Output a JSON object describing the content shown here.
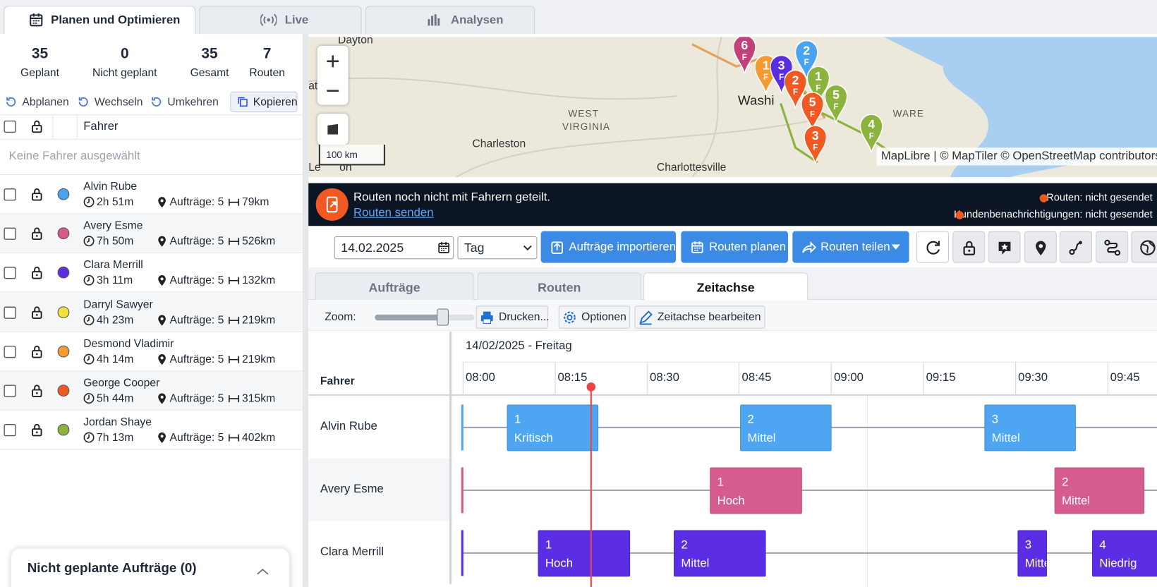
{
  "tabs": [
    "Planen und Optimieren",
    "Live",
    "Analysen"
  ],
  "stats": [
    {
      "value": 35,
      "label": "Geplant"
    },
    {
      "value": 0,
      "label": "Nicht geplant"
    },
    {
      "value": 35,
      "label": "Gesamt"
    },
    {
      "value": 7,
      "label": "Routen"
    }
  ],
  "actions": [
    "Abplanen",
    "Wechseln",
    "Umkehren",
    "Kopieren"
  ],
  "driver_header": "Fahrer",
  "no_selection": "Keine Fahrer ausgewählt",
  "drivers": [
    {
      "name": "Alvin Rube",
      "color": "#4aa3f2",
      "duration": "2h 51m",
      "orders": "Aufträge: 5",
      "distance": "79km"
    },
    {
      "name": "Avery Esme",
      "color": "#d45a8c",
      "duration": "7h 50m",
      "orders": "Aufträge: 5",
      "distance": "526km"
    },
    {
      "name": "Clara Merrill",
      "color": "#5a2de0",
      "duration": "3h 11m",
      "orders": "Aufträge: 5",
      "distance": "132km"
    },
    {
      "name": "Darryl Sawyer",
      "color": "#f2e13a",
      "duration": "4h 23m",
      "orders": "Aufträge: 5",
      "distance": "219km"
    },
    {
      "name": "Desmond Vladimir",
      "color": "#f39a33",
      "duration": "4h 14m",
      "orders": "Aufträge: 5",
      "distance": "219km"
    },
    {
      "name": "George Cooper",
      "color": "#f05a22",
      "duration": "5h 44m",
      "orders": "Aufträge: 5",
      "distance": "315km"
    },
    {
      "name": "Jordan Shaye",
      "color": "#8cb33c",
      "duration": "7h 13m",
      "orders": "Aufträge: 5",
      "distance": "402km"
    }
  ],
  "unplanned_panel": "Nicht geplante Aufträge (0)",
  "map": {
    "labels": [
      "Dayton",
      "ati",
      "WEST",
      "VIRGINIA",
      "Charleston",
      "Washi",
      "Charlottesville",
      "WARE",
      "Le",
      "on"
    ],
    "scale": "100 km",
    "attribution": "MapLibre | © MapTiler © OpenStreetMap contributors",
    "pins": [
      {
        "number": "6",
        "letter": "F",
        "color": "#c2417a"
      },
      {
        "number": "1",
        "letter": "F",
        "color": "#f39a33"
      },
      {
        "number": "3",
        "letter": "F",
        "color": "#5a2de0"
      },
      {
        "number": "2",
        "letter": "F",
        "color": "#4aa3f2"
      },
      {
        "number": "2",
        "letter": "F",
        "color": "#f05a22"
      },
      {
        "number": "1",
        "letter": "F",
        "color": "#8cb33c"
      },
      {
        "number": "5",
        "letter": "F",
        "color": "#f05a22"
      },
      {
        "number": "5",
        "letter": "F",
        "color": "#8cb33c"
      },
      {
        "number": "3",
        "letter": "F",
        "color": "#f05a22"
      },
      {
        "number": "4",
        "letter": "F",
        "color": "#8cb33c"
      }
    ]
  },
  "banner": {
    "message": "Routen noch nicht mit Fahrern geteilt.",
    "link": "Routen senden",
    "status": [
      "Routen: nicht gesendet",
      "Kundenbenachrichtigungen: nicht gesendet"
    ]
  },
  "toolbar": {
    "date": "14.02.2025",
    "view": "Tag",
    "buttons": [
      "Aufträge importieren",
      "Routen planen",
      "Routen teilen"
    ]
  },
  "subtabs": [
    "Aufträge",
    "Routen",
    "Zeitachse"
  ],
  "zoom_label": "Zoom:",
  "timeline_buttons": [
    "Drucken...",
    "Optionen",
    "Zeitachse bearbeiten"
  ],
  "timeline": {
    "date": "14/02/2025 - Freitag",
    "column": "Fahrer",
    "times": [
      "08:00",
      "08:15",
      "08:30",
      "08:45",
      "09:00",
      "09:15",
      "09:30",
      "09:45"
    ],
    "rows": [
      {
        "driver": "Alvin Rube",
        "color": "#4ea6f2",
        "stops": [
          {
            "number": "1",
            "priority": "Kritisch"
          },
          {
            "number": "2",
            "priority": "Mittel"
          },
          {
            "number": "3",
            "priority": "Mittel"
          }
        ]
      },
      {
        "driver": "Avery Esme",
        "color": "#d65b8f",
        "stops": [
          {
            "number": "1",
            "priority": "Hoch"
          },
          {
            "number": "2",
            "priority": "Mittel"
          }
        ]
      },
      {
        "driver": "Clara Merrill",
        "color": "#5b2ee6",
        "stops": [
          {
            "number": "1",
            "priority": "Hoch"
          },
          {
            "number": "2",
            "priority": "Mittel"
          },
          {
            "number": "3",
            "priority": "Mitte"
          },
          {
            "number": "4",
            "priority": "Niedrig"
          }
        ]
      }
    ]
  }
}
